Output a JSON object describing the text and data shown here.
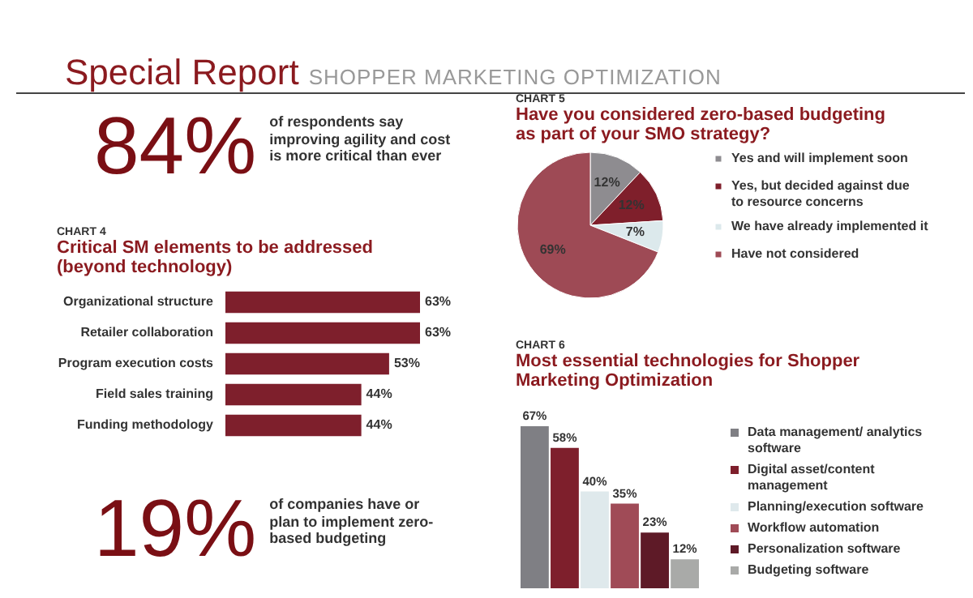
{
  "chart_data": [
    {
      "type": "other",
      "title": "Special Report",
      "subtitle": "SHOPPER MARKETING OPTIMIZATION"
    },
    {
      "type": "other",
      "annotations": [
        "84%",
        "of respondents say improving agility and cost is more critical than ever"
      ]
    },
    {
      "type": "bar",
      "orientation": "horizontal",
      "subtitle": "CHART 4",
      "title": "Critical SM elements to be addressed (beyond technology)",
      "categories": [
        "Organizational structure",
        "Retailer collaboration",
        "Program execution costs",
        "Field sales training",
        "Funding methodology"
      ],
      "values": [
        63,
        63,
        53,
        44,
        44
      ],
      "value_labels": [
        "63%",
        "63%",
        "53%",
        "44%",
        "44%"
      ],
      "color": "#7e1f2c"
    },
    {
      "type": "other",
      "annotations": [
        "19%",
        "of companies  have or plan to implement zero-based budgeting"
      ]
    },
    {
      "type": "pie",
      "subtitle": "CHART 5",
      "title": "Have you considered zero-based budgeting as part of your SMO strategy?",
      "categories": [
        "Yes and will implement soon",
        "Yes, but decided against due to resource concerns",
        "We have already implemented it",
        "Have not considered"
      ],
      "values": [
        12,
        12,
        7,
        69
      ],
      "value_labels": [
        "12%",
        "12%",
        "7%",
        "69%"
      ],
      "colors": [
        "#8e8c90",
        "#7f1f2b",
        "#dce9ec",
        "#9e4a55"
      ],
      "legend": "right"
    },
    {
      "type": "bar",
      "subtitle": "CHART 6",
      "title": "Most essential technologies for Shopper Marketing Optimization",
      "categories": [
        null
      ],
      "legend": "right",
      "series": [
        {
          "name": "Data management/ analytics software",
          "color": "#7f7f84",
          "values": [
            67
          ],
          "value_labels": [
            "67%"
          ]
        },
        {
          "name": "Digital asset/content management",
          "color": "#7e1f2c",
          "values": [
            58
          ],
          "value_labels": [
            "58%"
          ]
        },
        {
          "name": "Planning/execution software",
          "color": "#dfe9ec",
          "values": [
            40
          ],
          "value_labels": [
            "40%"
          ]
        },
        {
          "name": "Workflow automation",
          "color": "#a04b57",
          "values": [
            35
          ],
          "value_labels": [
            "35%"
          ]
        },
        {
          "name": "Personalization software",
          "color": "#5e1a27",
          "values": [
            23
          ],
          "value_labels": [
            "23%"
          ]
        },
        {
          "name": "Budgeting software",
          "color": "#a9aaa8",
          "values": [
            12
          ],
          "value_labels": [
            "12%"
          ]
        }
      ]
    }
  ]
}
